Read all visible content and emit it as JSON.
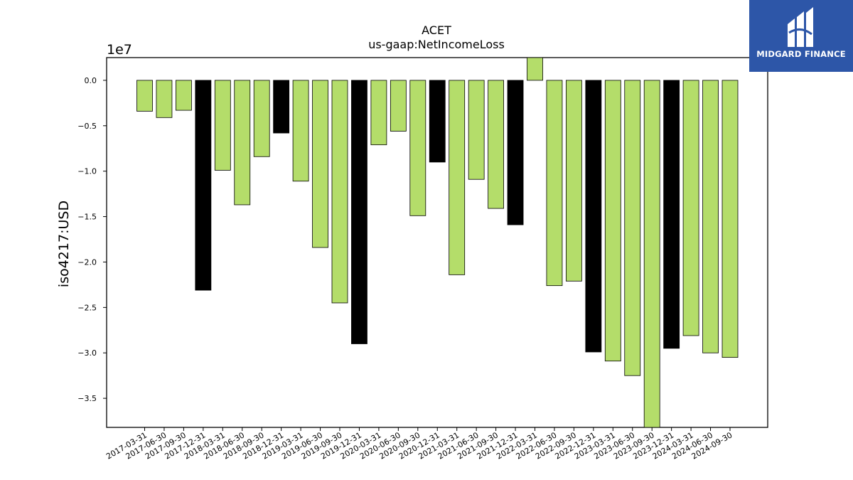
{
  "chart_data": {
    "type": "bar",
    "title": "ACET",
    "subtitle": "us-gaap:NetIncomeLoss",
    "xlabel": "",
    "ylabel": "iso4217:USD",
    "scale_label": "1e7",
    "ylim": [
      -3.82,
      0.25
    ],
    "yticks": [
      0.0,
      -0.5,
      -1.0,
      -1.5,
      -2.0,
      -2.5,
      -3.0,
      -3.5
    ],
    "ytick_labels": [
      "0.0",
      "−0.5",
      "−1.0",
      "−1.5",
      "−2.0",
      "−2.5",
      "−3.0",
      "−3.5"
    ],
    "grid": false,
    "legend": "none",
    "colors": {
      "quarter": "#b4dd6a",
      "year_end": "#000000",
      "edge": "#000000"
    },
    "categories": [
      "2017-03-31",
      "2017-06-30",
      "2017-09-30",
      "2017-12-31",
      "2018-03-31",
      "2018-06-30",
      "2018-09-30",
      "2018-12-31",
      "2019-03-31",
      "2019-06-30",
      "2019-09-30",
      "2019-12-31",
      "2020-03-31",
      "2020-06-30",
      "2020-09-30",
      "2020-12-31",
      "2021-03-31",
      "2021-06-30",
      "2021-09-30",
      "2021-12-31",
      "2022-03-31",
      "2022-06-30",
      "2022-09-30",
      "2022-12-31",
      "2023-03-31",
      "2023-06-30",
      "2023-09-30",
      "2023-12-31",
      "2024-03-31",
      "2024-06-30",
      "2024-09-30"
    ],
    "values": [
      -0.34,
      -0.41,
      -0.33,
      -2.31,
      -0.99,
      -1.37,
      -0.84,
      -0.58,
      -1.11,
      -1.84,
      -2.45,
      -2.9,
      -0.71,
      -0.56,
      -1.49,
      -0.9,
      -2.14,
      -1.09,
      -1.41,
      -1.59,
      0.28,
      -2.26,
      -2.21,
      -2.99,
      -3.09,
      -3.25,
      -3.82,
      -2.95,
      -2.81,
      -3.0,
      -3.05
    ],
    "highlight": [
      false,
      false,
      false,
      true,
      false,
      false,
      false,
      true,
      false,
      false,
      false,
      true,
      false,
      false,
      false,
      true,
      false,
      false,
      false,
      true,
      false,
      false,
      false,
      true,
      false,
      false,
      false,
      true,
      false,
      false,
      false
    ]
  },
  "logo": {
    "text": "MIDGARD FINANCE",
    "background": "#2d56a8",
    "foreground": "#ffffff"
  }
}
